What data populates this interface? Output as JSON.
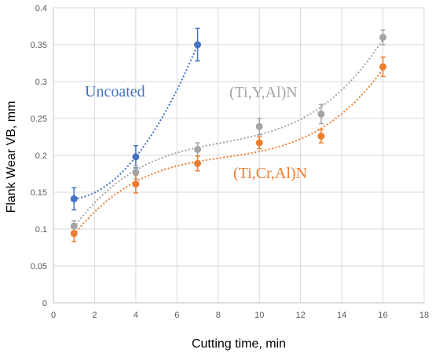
{
  "chart_data": {
    "type": "scatter",
    "title": "",
    "xlabel": "Cutting time, min",
    "ylabel": "Flank Wear VB, mm",
    "xlim": [
      0,
      18
    ],
    "ylim": [
      0,
      0.4
    ],
    "x_ticks": [
      "0",
      "2",
      "4",
      "6",
      "8",
      "10",
      "12",
      "14",
      "16",
      "18"
    ],
    "y_ticks": [
      "0",
      "0.05",
      "0.1",
      "0.15",
      "0.2",
      "0.25",
      "0.3",
      "0.35",
      "0.4"
    ],
    "grid": true,
    "legend": "none",
    "series": [
      {
        "name": "Uncoated",
        "color": "#4472c4",
        "trendline": "polynomial",
        "points": [
          {
            "x": 1,
            "y": 0.141,
            "err": 0.015
          },
          {
            "x": 4,
            "y": 0.198,
            "err": 0.015
          },
          {
            "x": 7,
            "y": 0.35,
            "err": 0.022
          }
        ]
      },
      {
        "name": "(Ti,Y,Al)N",
        "color": "#a5a5a5",
        "trendline": "polynomial",
        "points": [
          {
            "x": 1,
            "y": 0.104,
            "err": 0.007
          },
          {
            "x": 4,
            "y": 0.177,
            "err": 0.009
          },
          {
            "x": 7,
            "y": 0.208,
            "err": 0.009
          },
          {
            "x": 10,
            "y": 0.239,
            "err": 0.011
          },
          {
            "x": 13,
            "y": 0.256,
            "err": 0.013
          },
          {
            "x": 16,
            "y": 0.36,
            "err": 0.01
          }
        ]
      },
      {
        "name": "(Ti,Cr,Al)N",
        "color": "#ed7d31",
        "trendline": "polynomial",
        "points": [
          {
            "x": 1,
            "y": 0.094,
            "err": 0.011
          },
          {
            "x": 4,
            "y": 0.161,
            "err": 0.012
          },
          {
            "x": 7,
            "y": 0.189,
            "err": 0.01
          },
          {
            "x": 10,
            "y": 0.217,
            "err": 0.008
          },
          {
            "x": 13,
            "y": 0.226,
            "err": 0.009
          },
          {
            "x": 16,
            "y": 0.32,
            "err": 0.013
          }
        ]
      }
    ]
  }
}
